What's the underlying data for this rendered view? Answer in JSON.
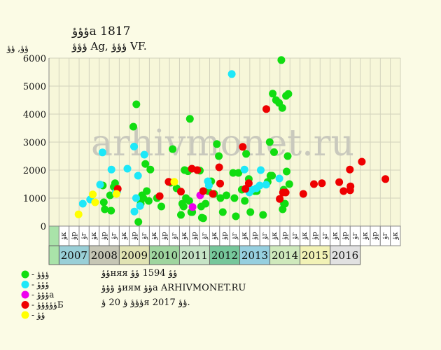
{
  "header": {
    "title": "ؤؤؤa 1817",
    "subtitle": "ؤؤؤ Ag, ؤؤؤ VF.",
    "unit_label": "ؤؤ, ؤؤ"
  },
  "watermark": "arhivmonet.ru",
  "notes": {
    "line1": "ؤؤняя ؤؤ 1594 ؤؤ",
    "line2": "ؤ ؤؤؤиям ؤؤa ARHIVMONET.RU",
    "line3": "ؤؤؤ ؤ 20 ؤя 2017 ؤؤ."
  },
  "colors": {
    "background": "#fbfbe5",
    "plot_background": "#f7f7d9",
    "grid": "#d2d2bc",
    "green": "#11dd11",
    "cyan": "#1ee8f8",
    "magenta": "#ee00ee",
    "red": "#ee0000",
    "yellow": "#ffff00"
  },
  "chart_data": {
    "type": "scatter",
    "ylabel": "ؤؤ, ؤؤ",
    "ylim": [
      0,
      6000
    ],
    "yticks": [
      0,
      1000,
      2000,
      3000,
      4000,
      5000,
      6000
    ],
    "grid": true,
    "legend_position": "bottom-left",
    "month_labels": [
      "ؤк",
      "ؤр",
      "ؤг",
      "ؤк",
      "ؤр",
      "ؤг",
      "ؤк",
      "ؤр",
      "ؤг",
      "ؤк",
      "ؤр",
      "ؤг",
      "ؤк",
      "ؤр",
      "ؤг",
      "ؤк",
      "ؤр",
      "ؤг",
      "ؤк",
      "ؤр",
      "ؤг",
      "ؤк",
      "ؤр",
      "ؤг",
      "ؤк",
      "ؤр",
      "ؤг",
      "ؤк",
      "ؤр",
      "ؤг",
      "ؤк",
      "ؤр",
      "ؤг",
      "ؤк"
    ],
    "years": [
      {
        "label": "2007",
        "color": "#99cfd7"
      },
      {
        "label": "2008",
        "color": "#c6c6b5"
      },
      {
        "label": "2009",
        "color": "#e1e3b3"
      },
      {
        "label": "2010",
        "color": "#9fd59f"
      },
      {
        "label": "2011",
        "color": "#c6e4c6"
      },
      {
        "label": "2012",
        "color": "#76c79b"
      },
      {
        "label": "2013",
        "color": "#96cfdf"
      },
      {
        "label": "2014",
        "color": "#cfe9bc"
      },
      {
        "label": "2015",
        "color": "#f2f2b6"
      },
      {
        "label": "2016",
        "color": "#e1e1e1"
      }
    ],
    "legend_labels": [
      "- ؤؤؤ",
      "- ؤؤؤ",
      "- ؤؤؤa",
      "- ؤؤؤؤؤБ",
      "- ؤؤ"
    ],
    "series": [
      {
        "name": "- ؤؤؤ",
        "color": "#11dd11",
        "points": [
          [
            2007.14,
            1450
          ],
          [
            2007.17,
            850
          ],
          [
            2007.2,
            600
          ],
          [
            2007.36,
            1100
          ],
          [
            2007.39,
            550
          ],
          [
            2007.47,
            1400
          ],
          [
            2007.51,
            1530
          ],
          [
            2008.06,
            3550
          ],
          [
            2008.15,
            4350
          ],
          [
            2008.21,
            150
          ],
          [
            2008.28,
            800
          ],
          [
            2008.32,
            1100
          ],
          [
            2008.36,
            1000
          ],
          [
            2008.42,
            2220
          ],
          [
            2008.46,
            1250
          ],
          [
            2008.52,
            900
          ],
          [
            2008.57,
            2020
          ],
          [
            2008.77,
            1000
          ],
          [
            2008.9,
            700
          ],
          [
            2009.18,
            1550
          ],
          [
            2009.24,
            2750
          ],
          [
            2009.36,
            1350
          ],
          [
            2009.49,
            400
          ],
          [
            2009.53,
            800
          ],
          [
            2009.57,
            700
          ],
          [
            2009.6,
            2000
          ],
          [
            2009.64,
            1000
          ],
          [
            2009.7,
            1960
          ],
          [
            2009.74,
            900
          ],
          [
            2009.76,
            3830
          ],
          [
            2009.8,
            500
          ],
          [
            2009.83,
            500
          ],
          [
            2010.06,
            1980
          ],
          [
            2010.1,
            700
          ],
          [
            2010.12,
            300
          ],
          [
            2010.16,
            280
          ],
          [
            2010.23,
            800
          ],
          [
            2010.31,
            1250
          ],
          [
            2010.4,
            1600
          ],
          [
            2010.49,
            1150
          ],
          [
            2010.57,
            2930
          ],
          [
            2010.63,
            2500
          ],
          [
            2010.68,
            1000
          ],
          [
            2010.75,
            500
          ],
          [
            2010.86,
            1100
          ],
          [
            2011.06,
            1900
          ],
          [
            2011.1,
            1000
          ],
          [
            2011.14,
            350
          ],
          [
            2011.22,
            1900
          ],
          [
            2011.32,
            1300
          ],
          [
            2011.41,
            900
          ],
          [
            2011.45,
            2580
          ],
          [
            2011.53,
            1680
          ],
          [
            2011.58,
            500
          ],
          [
            2011.71,
            1250
          ],
          [
            2011.77,
            1250
          ],
          [
            2011.96,
            400
          ],
          [
            2012.1,
            1580
          ],
          [
            2012.16,
            3000
          ],
          [
            2012.18,
            1800
          ],
          [
            2012.23,
            1800
          ],
          [
            2012.25,
            4730
          ],
          [
            2012.29,
            2640
          ],
          [
            2012.35,
            4500
          ],
          [
            2012.44,
            4400
          ],
          [
            2012.51,
            5930
          ],
          [
            2012.54,
            4220
          ],
          [
            2012.55,
            600
          ],
          [
            2012.58,
            1300
          ],
          [
            2012.59,
            800
          ],
          [
            2012.62,
            800
          ],
          [
            2012.65,
            4650
          ],
          [
            2012.67,
            1950
          ],
          [
            2012.7,
            2500
          ],
          [
            2012.72,
            4720
          ],
          [
            2012.75,
            1500
          ]
        ]
      },
      {
        "name": "- ؤؤؤ",
        "color": "#1ee8f8",
        "points": [
          [
            2006.54,
            800
          ],
          [
            2006.76,
            950
          ],
          [
            2007.06,
            1480
          ],
          [
            2007.13,
            2630
          ],
          [
            2007.4,
            2020
          ],
          [
            2007.53,
            1200
          ],
          [
            2007.57,
            1230
          ],
          [
            2007.88,
            2050
          ],
          [
            2008.08,
            2840
          ],
          [
            2008.09,
            520
          ],
          [
            2008.14,
            1000
          ],
          [
            2008.2,
            1800
          ],
          [
            2008.26,
            720
          ],
          [
            2008.39,
            2550
          ],
          [
            2010.3,
            1600
          ],
          [
            2010.33,
            1450
          ],
          [
            2011.02,
            5430
          ],
          [
            2011.4,
            2020
          ],
          [
            2011.55,
            1200
          ],
          [
            2011.62,
            1300
          ],
          [
            2011.76,
            1350
          ],
          [
            2011.86,
            1450
          ],
          [
            2011.89,
            2000
          ],
          [
            2012.05,
            1480
          ],
          [
            2012.45,
            1700
          ]
        ]
      },
      {
        "name": "- ؤؤؤa",
        "color": "#ee00ee",
        "points": [
          [
            2009.84,
            680
          ],
          [
            2010.07,
            1100
          ]
        ]
      },
      {
        "name": "- ؤؤؤؤؤБ",
        "color": "#ee0000",
        "points": [
          [
            2007.59,
            1330
          ],
          [
            2008.85,
            1070
          ],
          [
            2009.12,
            1580
          ],
          [
            2009.49,
            1230
          ],
          [
            2009.82,
            2050
          ],
          [
            2009.98,
            2000
          ],
          [
            2010.16,
            1250
          ],
          [
            2010.45,
            1150
          ],
          [
            2010.64,
            2100
          ],
          [
            2010.67,
            1520
          ],
          [
            2011.35,
            2830
          ],
          [
            2011.43,
            1330
          ],
          [
            2011.53,
            1530
          ],
          [
            2012.06,
            4180
          ],
          [
            2012.46,
            970
          ],
          [
            2012.56,
            1200
          ],
          [
            2012.64,
            1200
          ],
          [
            2013.17,
            1150
          ],
          [
            2013.49,
            1500
          ],
          [
            2013.73,
            1530
          ],
          [
            2014.25,
            1570
          ],
          [
            2014.38,
            1250
          ],
          [
            2014.57,
            2020
          ],
          [
            2014.58,
            1280
          ],
          [
            2014.59,
            1420
          ],
          [
            2014.93,
            2300
          ],
          [
            2015.64,
            1680
          ]
        ]
      },
      {
        "name": "- ؤؤ",
        "color": "#ffff00",
        "points": [
          [
            2006.41,
            420
          ],
          [
            2006.84,
            1130
          ],
          [
            2006.91,
            850
          ],
          [
            2007.55,
            1150
          ],
          [
            2009.29,
            1580
          ]
        ]
      }
    ]
  }
}
